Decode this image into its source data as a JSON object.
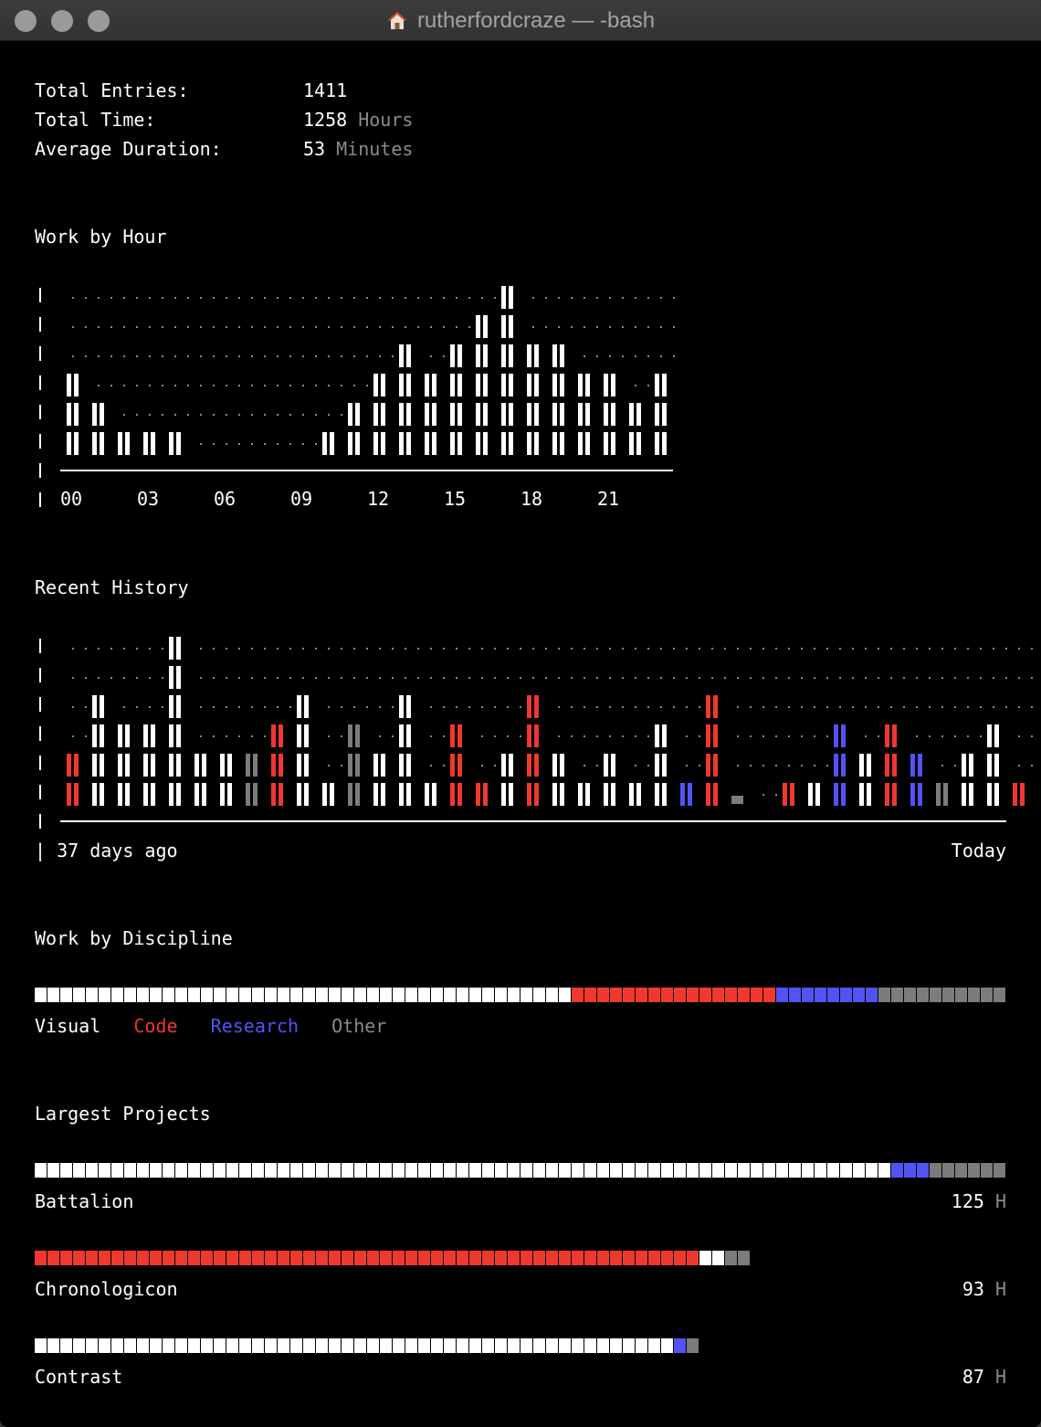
{
  "window": {
    "title": "rutherfordcraze — -bash"
  },
  "summary": {
    "entries_label": "Total Entries:",
    "entries_value": "1411",
    "time_label": "Total Time:",
    "time_value": "1258",
    "time_unit": "Hours",
    "avg_label": "Average Duration:",
    "avg_value": "53",
    "avg_unit": "Minutes"
  },
  "colors": {
    "visual": "#ffffff",
    "code": "#f0382e",
    "research": "#5252f5",
    "other": "#7c7c7c",
    "dots": "#8a8a8a"
  },
  "hour_chart": {
    "title": "Work by Hour",
    "tick_labels": [
      "00",
      "03",
      "06",
      "09",
      "12",
      "15",
      "18",
      "21"
    ],
    "max_level": 6,
    "values": [
      3,
      2,
      1,
      1,
      1,
      0,
      0,
      0,
      0,
      0,
      1,
      2,
      3,
      4,
      3,
      4,
      5,
      6,
      4,
      4,
      3,
      3,
      2,
      3
    ]
  },
  "history_chart": {
    "title": "Recent History",
    "start_label": "37 days ago",
    "end_label": "Today",
    "max_level": 6,
    "days": [
      {
        "level": 2,
        "type": "code"
      },
      {
        "level": 4,
        "type": "visual"
      },
      {
        "level": 3,
        "type": "visual"
      },
      {
        "level": 3,
        "type": "visual"
      },
      {
        "level": 6,
        "type": "visual"
      },
      {
        "level": 2,
        "type": "visual"
      },
      {
        "level": 2,
        "type": "visual"
      },
      {
        "level": 2,
        "type": "other"
      },
      {
        "level": 3,
        "type": "code"
      },
      {
        "level": 4,
        "type": "visual"
      },
      {
        "level": 1,
        "type": "visual"
      },
      {
        "level": 3,
        "type": "other"
      },
      {
        "level": 2,
        "type": "visual"
      },
      {
        "level": 4,
        "type": "visual"
      },
      {
        "level": 1,
        "type": "visual"
      },
      {
        "level": 3,
        "type": "code"
      },
      {
        "level": 1,
        "type": "code"
      },
      {
        "level": 2,
        "type": "visual"
      },
      {
        "level": 4,
        "type": "code"
      },
      {
        "level": 2,
        "type": "visual"
      },
      {
        "level": 1,
        "type": "visual"
      },
      {
        "level": 2,
        "type": "visual"
      },
      {
        "level": 1,
        "type": "visual"
      },
      {
        "level": 3,
        "type": "visual"
      },
      {
        "level": 1,
        "type": "research"
      },
      {
        "level": 4,
        "type": "code"
      },
      {
        "level": 0.3,
        "type": "other"
      },
      {
        "level": 0,
        "type": "none"
      },
      {
        "level": 1,
        "type": "code"
      },
      {
        "level": 1,
        "type": "visual"
      },
      {
        "level": 3,
        "type": "research"
      },
      {
        "level": 2,
        "type": "visual"
      },
      {
        "level": 3,
        "type": "code"
      },
      {
        "level": 2,
        "type": "research"
      },
      {
        "level": 1,
        "type": "other"
      },
      {
        "level": 2,
        "type": "visual"
      },
      {
        "level": 3,
        "type": "visual"
      },
      {
        "level": 1,
        "type": "code"
      }
    ]
  },
  "discipline": {
    "title": "Work by Discipline",
    "total_cells": 76,
    "segments": [
      {
        "name": "Visual",
        "cells": 42,
        "color": "#ffffff"
      },
      {
        "name": "Code",
        "cells": 16,
        "color": "#f0382e"
      },
      {
        "name": "Research",
        "cells": 8,
        "color": "#5252f5"
      },
      {
        "name": "Other",
        "cells": 10,
        "color": "#7c7c7c"
      }
    ],
    "legend": [
      "Visual",
      "Code",
      "Research",
      "Other"
    ]
  },
  "projects": {
    "title": "Largest Projects",
    "unit": "H",
    "items": [
      {
        "name": "Battalion",
        "hours": "125",
        "segments": [
          {
            "cells": 67,
            "color": "#ffffff"
          },
          {
            "cells": 3,
            "color": "#5252f5"
          },
          {
            "cells": 6,
            "color": "#7c7c7c"
          }
        ]
      },
      {
        "name": "Chronologicon",
        "hours": "93",
        "segments": [
          {
            "cells": 52,
            "color": "#f0382e"
          },
          {
            "cells": 2,
            "color": "#ffffff"
          },
          {
            "cells": 2,
            "color": "#7c7c7c"
          }
        ]
      },
      {
        "name": "Contrast",
        "hours": "87",
        "segments": [
          {
            "cells": 50,
            "color": "#ffffff"
          },
          {
            "cells": 1,
            "color": "#5252f5"
          },
          {
            "cells": 1,
            "color": "#7c7c7c"
          }
        ]
      }
    ]
  }
}
